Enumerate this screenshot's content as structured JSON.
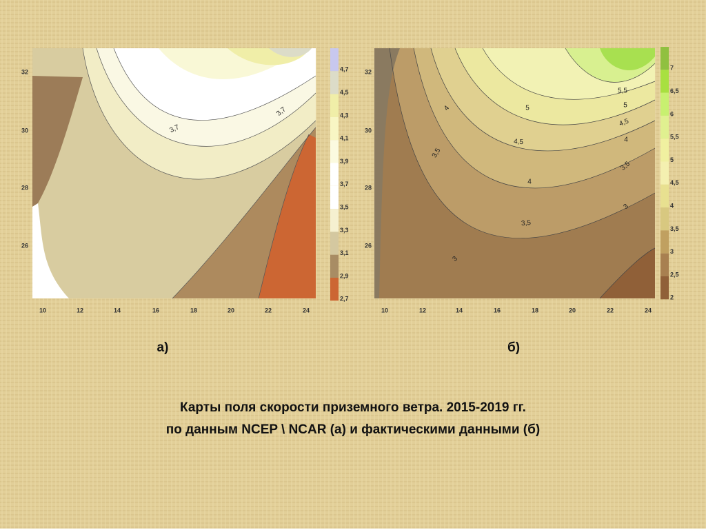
{
  "panel_a": {
    "y_ticks": [
      "32",
      "30",
      "28",
      "26"
    ],
    "x_ticks": [
      "10",
      "12",
      "14",
      "16",
      "18",
      "20",
      "22",
      "24"
    ],
    "colorbar_labels": [
      "4,7",
      "4,5",
      "4,3",
      "4,1",
      "3,9",
      "3,7",
      "3,5",
      "3,3",
      "3,1",
      "2,9",
      "2,7"
    ],
    "contour_labels": [
      "3,7",
      "3,7"
    ],
    "caption": "а)"
  },
  "panel_b": {
    "y_ticks": [
      "32",
      "30",
      "28",
      "26"
    ],
    "x_ticks": [
      "10",
      "12",
      "14",
      "16",
      "18",
      "20",
      "22",
      "24"
    ],
    "colorbar_labels": [
      "7",
      "6,5",
      "6",
      "5,5",
      "5",
      "4,5",
      "4",
      "3,5",
      "3",
      "2,5",
      "2"
    ],
    "contour_labels": [
      "4",
      "3,5",
      "3",
      "5",
      "4,5",
      "4",
      "3,5",
      "5,5",
      "5",
      "4,5",
      "4",
      "3,5",
      "3"
    ],
    "caption": "б)"
  },
  "title_lines": [
    "Карты поля скорости приземного ветра. 2015-2019 гг.",
    "по данным NCEP \\ NCAR (а) и фактическими данными (б)"
  ]
}
